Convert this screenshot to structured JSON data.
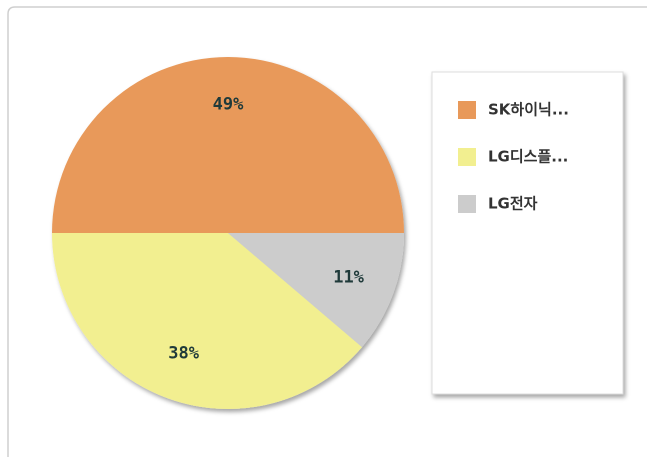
{
  "chart_data": {
    "type": "pie",
    "series": [
      {
        "name": "SK하이닉...",
        "color": "#e8995a"
      },
      {
        "name": "LG디스플...",
        "color": "#f2ef90"
      },
      {
        "name": "LG전자",
        "color": "#cccccc"
      }
    ],
    "values": [
      49,
      38,
      11
    ],
    "value_labels": [
      "49%",
      "38%",
      "11%"
    ],
    "legend": "right"
  }
}
